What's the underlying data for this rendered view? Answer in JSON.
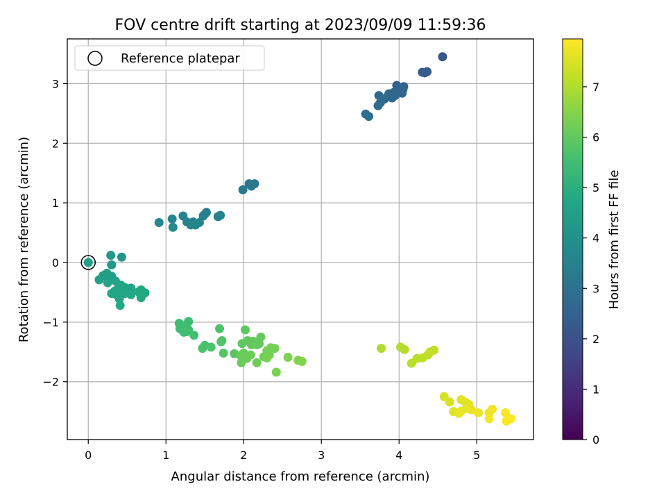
{
  "chart_data": {
    "type": "scatter",
    "title": "FOV centre drift starting at 2023/09/09 11:59:36",
    "xlabel": "Angular distance from reference (arcmin)",
    "ylabel": "Rotation from reference (arcmin)",
    "xlim": [
      -0.27,
      5.73
    ],
    "ylim": [
      -2.97,
      3.75
    ],
    "xticks": [
      0,
      1,
      2,
      3,
      4,
      5
    ],
    "yticks": [
      -2,
      -1,
      0,
      1,
      2,
      3
    ],
    "xtick_labels": [
      "0",
      "1",
      "2",
      "3",
      "4",
      "5"
    ],
    "ytick_labels": [
      "−2",
      "−1",
      "0",
      "1",
      "2",
      "3"
    ],
    "grid": true,
    "legend": {
      "placement": "top-left",
      "entries": [
        {
          "label": "Reference platepar",
          "marker": "open-circle",
          "x": 0,
          "y": 0
        }
      ]
    },
    "colorbar": {
      "label": "Hours from first FF file",
      "colormap": "viridis",
      "range": [
        0,
        7.95
      ],
      "ticks": [
        0,
        1,
        2,
        3,
        4,
        5,
        6,
        7
      ],
      "tick_labels": [
        "0",
        "1",
        "2",
        "3",
        "4",
        "5",
        "6",
        "7"
      ]
    },
    "points": [
      {
        "x": 4.56,
        "y": 3.45,
        "h": 2.1
      },
      {
        "x": 4.3,
        "y": 3.19,
        "h": 2.3
      },
      {
        "x": 4.36,
        "y": 3.2,
        "h": 2.3
      },
      {
        "x": 4.33,
        "y": 3.18,
        "h": 2.35
      },
      {
        "x": 3.97,
        "y": 2.97,
        "h": 2.5
      },
      {
        "x": 4.06,
        "y": 2.95,
        "h": 2.5
      },
      {
        "x": 4.01,
        "y": 2.92,
        "h": 2.55
      },
      {
        "x": 3.93,
        "y": 2.85,
        "h": 2.6
      },
      {
        "x": 4.04,
        "y": 2.84,
        "h": 2.6
      },
      {
        "x": 3.87,
        "y": 2.83,
        "h": 2.65
      },
      {
        "x": 3.95,
        "y": 2.8,
        "h": 2.65
      },
      {
        "x": 3.74,
        "y": 2.8,
        "h": 2.7
      },
      {
        "x": 3.85,
        "y": 2.78,
        "h": 2.7
      },
      {
        "x": 3.91,
        "y": 2.76,
        "h": 2.7
      },
      {
        "x": 3.81,
        "y": 2.74,
        "h": 2.75
      },
      {
        "x": 3.76,
        "y": 2.68,
        "h": 2.75
      },
      {
        "x": 3.73,
        "y": 2.63,
        "h": 2.8
      },
      {
        "x": 3.57,
        "y": 2.49,
        "h": 2.85
      },
      {
        "x": 3.61,
        "y": 2.45,
        "h": 2.85
      },
      {
        "x": 4.05,
        "y": 2.9,
        "h": 2.6
      },
      {
        "x": 2.14,
        "y": 1.32,
        "h": 3.1
      },
      {
        "x": 2.07,
        "y": 1.32,
        "h": 3.15
      },
      {
        "x": 2.1,
        "y": 1.28,
        "h": 3.15
      },
      {
        "x": 1.99,
        "y": 1.22,
        "h": 3.2
      },
      {
        "x": 1.52,
        "y": 0.84,
        "h": 3.4
      },
      {
        "x": 1.5,
        "y": 0.81,
        "h": 3.45
      },
      {
        "x": 1.48,
        "y": 0.78,
        "h": 3.45
      },
      {
        "x": 1.7,
        "y": 0.79,
        "h": 3.5
      },
      {
        "x": 1.67,
        "y": 0.77,
        "h": 3.5
      },
      {
        "x": 1.22,
        "y": 0.78,
        "h": 3.55
      },
      {
        "x": 1.27,
        "y": 0.68,
        "h": 3.55
      },
      {
        "x": 1.35,
        "y": 0.68,
        "h": 3.6
      },
      {
        "x": 1.43,
        "y": 0.67,
        "h": 3.6
      },
      {
        "x": 1.32,
        "y": 0.63,
        "h": 3.6
      },
      {
        "x": 1.38,
        "y": 0.63,
        "h": 3.6
      },
      {
        "x": 1.08,
        "y": 0.73,
        "h": 3.65
      },
      {
        "x": 0.91,
        "y": 0.67,
        "h": 3.7
      },
      {
        "x": 1.09,
        "y": 0.59,
        "h": 3.7
      },
      {
        "x": 0.29,
        "y": 0.12,
        "h": 4.2
      },
      {
        "x": 0.43,
        "y": 0.09,
        "h": 4.2
      },
      {
        "x": 0.3,
        "y": -0.04,
        "h": 4.3
      },
      {
        "x": 0.0,
        "y": 0.0,
        "h": 4.4
      },
      {
        "x": 0.24,
        "y": -0.18,
        "h": 4.45
      },
      {
        "x": 0.19,
        "y": -0.22,
        "h": 4.45
      },
      {
        "x": 0.3,
        "y": -0.23,
        "h": 4.5
      },
      {
        "x": 0.28,
        "y": -0.27,
        "h": 4.5
      },
      {
        "x": 0.14,
        "y": -0.29,
        "h": 4.5
      },
      {
        "x": 0.35,
        "y": -0.31,
        "h": 4.55
      },
      {
        "x": 0.25,
        "y": -0.34,
        "h": 4.55
      },
      {
        "x": 0.42,
        "y": -0.38,
        "h": 4.55
      },
      {
        "x": 0.39,
        "y": -0.42,
        "h": 4.6
      },
      {
        "x": 0.47,
        "y": -0.42,
        "h": 4.6
      },
      {
        "x": 0.55,
        "y": -0.43,
        "h": 4.6
      },
      {
        "x": 0.4,
        "y": -0.45,
        "h": 4.6
      },
      {
        "x": 0.34,
        "y": -0.48,
        "h": 4.65
      },
      {
        "x": 0.3,
        "y": -0.52,
        "h": 4.65
      },
      {
        "x": 0.37,
        "y": -0.55,
        "h": 4.65
      },
      {
        "x": 0.47,
        "y": -0.52,
        "h": 4.7
      },
      {
        "x": 0.55,
        "y": -0.54,
        "h": 4.7
      },
      {
        "x": 0.4,
        "y": -0.61,
        "h": 4.7
      },
      {
        "x": 0.68,
        "y": -0.46,
        "h": 4.75
      },
      {
        "x": 0.65,
        "y": -0.49,
        "h": 4.75
      },
      {
        "x": 0.73,
        "y": -0.51,
        "h": 4.75
      },
      {
        "x": 0.67,
        "y": -0.53,
        "h": 4.8
      },
      {
        "x": 0.68,
        "y": -0.59,
        "h": 4.8
      },
      {
        "x": 0.41,
        "y": -0.72,
        "h": 4.8
      },
      {
        "x": 1.17,
        "y": -1.02,
        "h": 5.4
      },
      {
        "x": 1.29,
        "y": -0.99,
        "h": 5.4
      },
      {
        "x": 1.21,
        "y": -1.06,
        "h": 5.45
      },
      {
        "x": 1.26,
        "y": -1.06,
        "h": 5.45
      },
      {
        "x": 1.18,
        "y": -1.11,
        "h": 5.5
      },
      {
        "x": 1.29,
        "y": -1.13,
        "h": 5.5
      },
      {
        "x": 1.23,
        "y": -1.17,
        "h": 5.5
      },
      {
        "x": 1.27,
        "y": -1.16,
        "h": 5.5
      },
      {
        "x": 1.36,
        "y": -1.22,
        "h": 5.55
      },
      {
        "x": 1.5,
        "y": -1.39,
        "h": 5.6
      },
      {
        "x": 1.58,
        "y": -1.42,
        "h": 5.65
      },
      {
        "x": 1.47,
        "y": -1.44,
        "h": 5.65
      },
      {
        "x": 1.69,
        "y": -1.11,
        "h": 5.7
      },
      {
        "x": 1.72,
        "y": -1.31,
        "h": 5.75
      },
      {
        "x": 1.71,
        "y": -1.33,
        "h": 5.75
      },
      {
        "x": 1.74,
        "y": -1.52,
        "h": 5.8
      },
      {
        "x": 1.88,
        "y": -1.53,
        "h": 5.85
      },
      {
        "x": 2.02,
        "y": -1.13,
        "h": 5.9
      },
      {
        "x": 2.05,
        "y": -1.31,
        "h": 5.95
      },
      {
        "x": 1.98,
        "y": -1.36,
        "h": 5.95
      },
      {
        "x": 2.12,
        "y": -1.32,
        "h": 6.0
      },
      {
        "x": 2.1,
        "y": -1.38,
        "h": 6.0
      },
      {
        "x": 2.2,
        "y": -1.36,
        "h": 6.05
      },
      {
        "x": 2.22,
        "y": -1.25,
        "h": 6.05
      },
      {
        "x": 2.17,
        "y": -1.38,
        "h": 6.05
      },
      {
        "x": 2.0,
        "y": -1.52,
        "h": 6.1
      },
      {
        "x": 1.96,
        "y": -1.56,
        "h": 6.1
      },
      {
        "x": 2.09,
        "y": -1.55,
        "h": 6.15
      },
      {
        "x": 2.04,
        "y": -1.61,
        "h": 6.15
      },
      {
        "x": 1.97,
        "y": -1.68,
        "h": 6.15
      },
      {
        "x": 2.17,
        "y": -1.68,
        "h": 6.2
      },
      {
        "x": 2.26,
        "y": -1.58,
        "h": 6.2
      },
      {
        "x": 2.3,
        "y": -1.48,
        "h": 6.25
      },
      {
        "x": 2.33,
        "y": -1.55,
        "h": 6.25
      },
      {
        "x": 2.35,
        "y": -1.43,
        "h": 6.3
      },
      {
        "x": 2.4,
        "y": -1.44,
        "h": 6.3
      },
      {
        "x": 2.3,
        "y": -1.6,
        "h": 6.3
      },
      {
        "x": 2.42,
        "y": -1.84,
        "h": 6.35
      },
      {
        "x": 2.57,
        "y": -1.59,
        "h": 6.4
      },
      {
        "x": 2.7,
        "y": -1.64,
        "h": 6.45
      },
      {
        "x": 2.75,
        "y": -1.66,
        "h": 6.45
      },
      {
        "x": 3.77,
        "y": -1.44,
        "h": 7.0
      },
      {
        "x": 4.02,
        "y": -1.42,
        "h": 7.05
      },
      {
        "x": 4.07,
        "y": -1.46,
        "h": 7.05
      },
      {
        "x": 4.16,
        "y": -1.69,
        "h": 7.1
      },
      {
        "x": 4.23,
        "y": -1.61,
        "h": 7.1
      },
      {
        "x": 4.3,
        "y": -1.6,
        "h": 7.15
      },
      {
        "x": 4.37,
        "y": -1.55,
        "h": 7.15
      },
      {
        "x": 4.4,
        "y": -1.5,
        "h": 7.2
      },
      {
        "x": 4.45,
        "y": -1.47,
        "h": 7.2
      },
      {
        "x": 4.58,
        "y": -2.25,
        "h": 7.45
      },
      {
        "x": 4.65,
        "y": -2.34,
        "h": 7.5
      },
      {
        "x": 4.7,
        "y": -2.5,
        "h": 7.55
      },
      {
        "x": 4.8,
        "y": -2.3,
        "h": 7.55
      },
      {
        "x": 4.85,
        "y": -2.34,
        "h": 7.6
      },
      {
        "x": 4.9,
        "y": -2.38,
        "h": 7.6
      },
      {
        "x": 4.87,
        "y": -2.45,
        "h": 7.65
      },
      {
        "x": 4.8,
        "y": -2.49,
        "h": 7.65
      },
      {
        "x": 4.77,
        "y": -2.53,
        "h": 7.7
      },
      {
        "x": 4.93,
        "y": -2.47,
        "h": 7.7
      },
      {
        "x": 5.02,
        "y": -2.52,
        "h": 7.75
      },
      {
        "x": 5.16,
        "y": -2.52,
        "h": 7.8
      },
      {
        "x": 5.2,
        "y": -2.46,
        "h": 7.8
      },
      {
        "x": 5.16,
        "y": -2.62,
        "h": 7.85
      },
      {
        "x": 5.37,
        "y": -2.52,
        "h": 7.9
      },
      {
        "x": 5.44,
        "y": -2.62,
        "h": 7.95
      },
      {
        "x": 5.38,
        "y": -2.66,
        "h": 7.95
      }
    ]
  }
}
